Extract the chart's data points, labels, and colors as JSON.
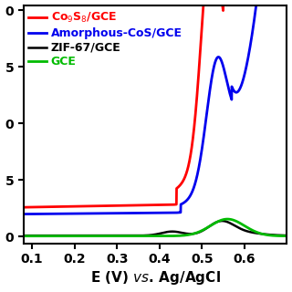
{
  "xlabel": "E (V) × Ag/AgCl",
  "xlim": [
    0.08,
    0.7
  ],
  "ylim": [
    -0.03,
    1.02
  ],
  "xticks": [
    0.1,
    0.2,
    0.3,
    0.4,
    0.5,
    0.6
  ],
  "ytick_positions": [
    0.0,
    0.25,
    0.5,
    0.75,
    1.0
  ],
  "ytick_labels": [
    "0",
    "5",
    "0",
    "5",
    "0"
  ],
  "lines": [
    {
      "label": "Co$_9$S$_8$/GCE",
      "color": "#ff0000",
      "lw": 2.0
    },
    {
      "label": "Amorphous-CoS/GCE",
      "color": "#0000ee",
      "lw": 2.0
    },
    {
      "label": "ZIF-67/GCE",
      "color": "#000000",
      "lw": 1.8
    },
    {
      "label": "GCE",
      "color": "#00bb00",
      "lw": 2.0
    }
  ],
  "background_color": "#ffffff"
}
